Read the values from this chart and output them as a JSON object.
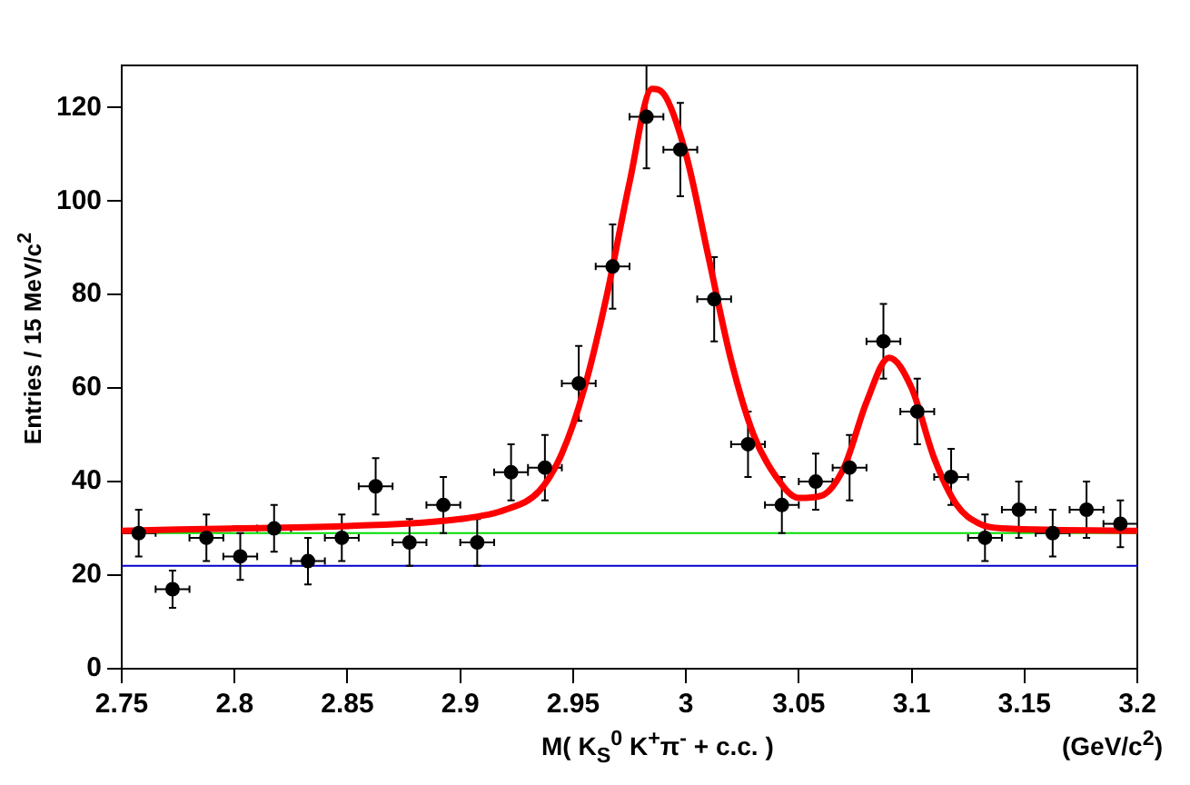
{
  "chart_data": {
    "type": "scatter",
    "xlabel": "M( K$_{S}$$^{0}$ K$^{+}$π$^{-}$ + c.c. )",
    "annotations": [
      "(GeV/c$^{2}$)"
    ],
    "ylabel": "Entries / 15 MeV/c$^{2}$",
    "xlim": [
      2.75,
      3.2
    ],
    "xticks": [
      {
        "value": 2.75,
        "label": "2.75"
      },
      {
        "value": 2.8,
        "label": "2.8"
      },
      {
        "value": 2.85,
        "label": "2.85"
      },
      {
        "value": 2.9,
        "label": "2.9"
      },
      {
        "value": 2.95,
        "label": "2.95"
      },
      {
        "value": 3,
        "label": "3"
      },
      {
        "value": 3.05,
        "label": "3.05"
      },
      {
        "value": 3.1,
        "label": "3.1"
      },
      {
        "value": 3.15,
        "label": "3.15"
      },
      {
        "value": 3.2,
        "label": "3.2"
      }
    ],
    "ylim": [
      0,
      129
    ],
    "yticks": [
      0,
      20,
      40,
      60,
      80,
      100,
      120
    ],
    "grid": false,
    "legend": false,
    "marker": "circle",
    "series": [
      {
        "color": "#000000",
        "x": [
          2.7575,
          2.7725,
          2.7875,
          2.8025,
          2.8175,
          2.8325,
          2.8475,
          2.8625,
          2.8775,
          2.8925,
          2.9075,
          2.9225,
          2.9375,
          2.9525,
          2.9675,
          2.9825,
          2.9975,
          3.0125,
          3.0275,
          3.0425,
          3.0575,
          3.0725,
          3.0875,
          3.1025,
          3.1175,
          3.1325,
          3.1475,
          3.1625,
          3.1775,
          3.1925
        ],
        "values": [
          29,
          17,
          28,
          24,
          30,
          23,
          28,
          39,
          27,
          35,
          27,
          42,
          43,
          61,
          86,
          118,
          111,
          79,
          48,
          35,
          40,
          43,
          70,
          55,
          41,
          28,
          34,
          29,
          34,
          31
        ],
        "errors": [
          5,
          4,
          5,
          5,
          5,
          5,
          5,
          6,
          5,
          6,
          5,
          6,
          7,
          8,
          9,
          11,
          10,
          9,
          7,
          6,
          6,
          7,
          8,
          7,
          6,
          5,
          6,
          5,
          6,
          5
        ],
        "xerrors": [
          0.0075,
          0.0075,
          0.0075,
          0.0075,
          0.0075,
          0.0075,
          0.0075,
          0.0075,
          0.0075,
          0.0075,
          0.0075,
          0.0075,
          0.0075,
          0.0075,
          0.0075,
          0.0075,
          0.0075,
          0.0075,
          0.0075,
          0.0075,
          0.0075,
          0.0075,
          0.0075,
          0.0075,
          0.0075,
          0.0075,
          0.0075,
          0.0075,
          0.0075,
          0.0075
        ]
      },
      {
        "type": "line",
        "color": "#ff0000",
        "marker": "none",
        "x": [
          2.75,
          2.8,
          2.85,
          2.9,
          2.92,
          2.935,
          2.945,
          2.955,
          2.965,
          2.975,
          2.985,
          2.99,
          3.0,
          3.01,
          3.02,
          3.03,
          3.04,
          3.05,
          3.06,
          3.07,
          3.08,
          3.09,
          3.1,
          3.11,
          3.12,
          3.13,
          3.14,
          3.2
        ],
        "values": [
          29.5,
          30,
          30.5,
          32,
          34,
          38,
          46,
          60,
          80,
          104,
          124,
          123,
          110,
          88,
          66,
          50,
          41,
          36.5,
          37,
          43,
          57,
          66.5,
          60,
          45,
          35,
          31,
          30,
          29.5
        ]
      }
    ],
    "ref_lines": [
      {
        "axis": "y",
        "value": 29,
        "color": "#00dd00"
      },
      {
        "axis": "y",
        "value": 22,
        "color": "#0000cc"
      }
    ]
  }
}
